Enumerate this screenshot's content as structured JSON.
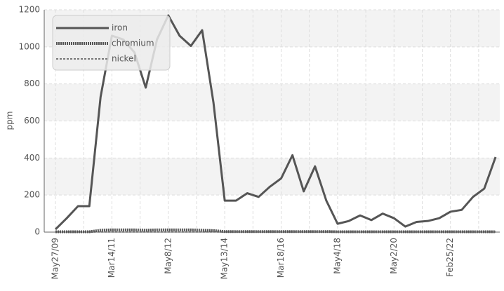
{
  "chart_data": {
    "type": "line",
    "y_label": "ppm",
    "categories": [
      "May27/09",
      null,
      null,
      null,
      null,
      "Mar14/11",
      null,
      null,
      null,
      null,
      "May8/12",
      null,
      null,
      null,
      null,
      "May13/14",
      null,
      null,
      null,
      null,
      "Mar18/16",
      null,
      null,
      null,
      null,
      "May4/18",
      null,
      null,
      null,
      null,
      "May2/20",
      null,
      null,
      null,
      null,
      "Feb25/22",
      null,
      null,
      null,
      null
    ],
    "series": [
      {
        "name": "iron",
        "color": "#555555",
        "dash": "solid",
        "values": [
          15,
          75,
          140,
          140,
          730,
          1060,
          1040,
          970,
          780,
          1040,
          1170,
          1060,
          1005,
          1090,
          700,
          170,
          170,
          210,
          190,
          245,
          290,
          415,
          220,
          355,
          170,
          45,
          60,
          90,
          65,
          100,
          75,
          30,
          55,
          60,
          75,
          110,
          120,
          190,
          235,
          405
        ]
      },
      {
        "name": "chromium",
        "color": "#555555",
        "dash": "dotted",
        "values": [
          2,
          2,
          2,
          2,
          10,
          12,
          12,
          12,
          10,
          12,
          12,
          12,
          12,
          10,
          8,
          3,
          3,
          3,
          3,
          3,
          3,
          3,
          3,
          3,
          3,
          2,
          2,
          2,
          2,
          2,
          2,
          2,
          2,
          2,
          2,
          2,
          2,
          2,
          2,
          2
        ]
      },
      {
        "name": "nickel",
        "color": "#777777",
        "dash": "dashed",
        "values": [
          1,
          1,
          1,
          1,
          1,
          1,
          1,
          1,
          1,
          1,
          1,
          1,
          1,
          1,
          1,
          1,
          1,
          1,
          1,
          1,
          1,
          1,
          1,
          1,
          1,
          1,
          1,
          1,
          1,
          1,
          1,
          1,
          1,
          1,
          1,
          1,
          1,
          1,
          1,
          1
        ]
      }
    ],
    "ylim": [
      0,
      1200
    ],
    "yticks": [
      0,
      200,
      400,
      600,
      800,
      1000,
      1200
    ],
    "grid": true,
    "legend": "top-left"
  }
}
